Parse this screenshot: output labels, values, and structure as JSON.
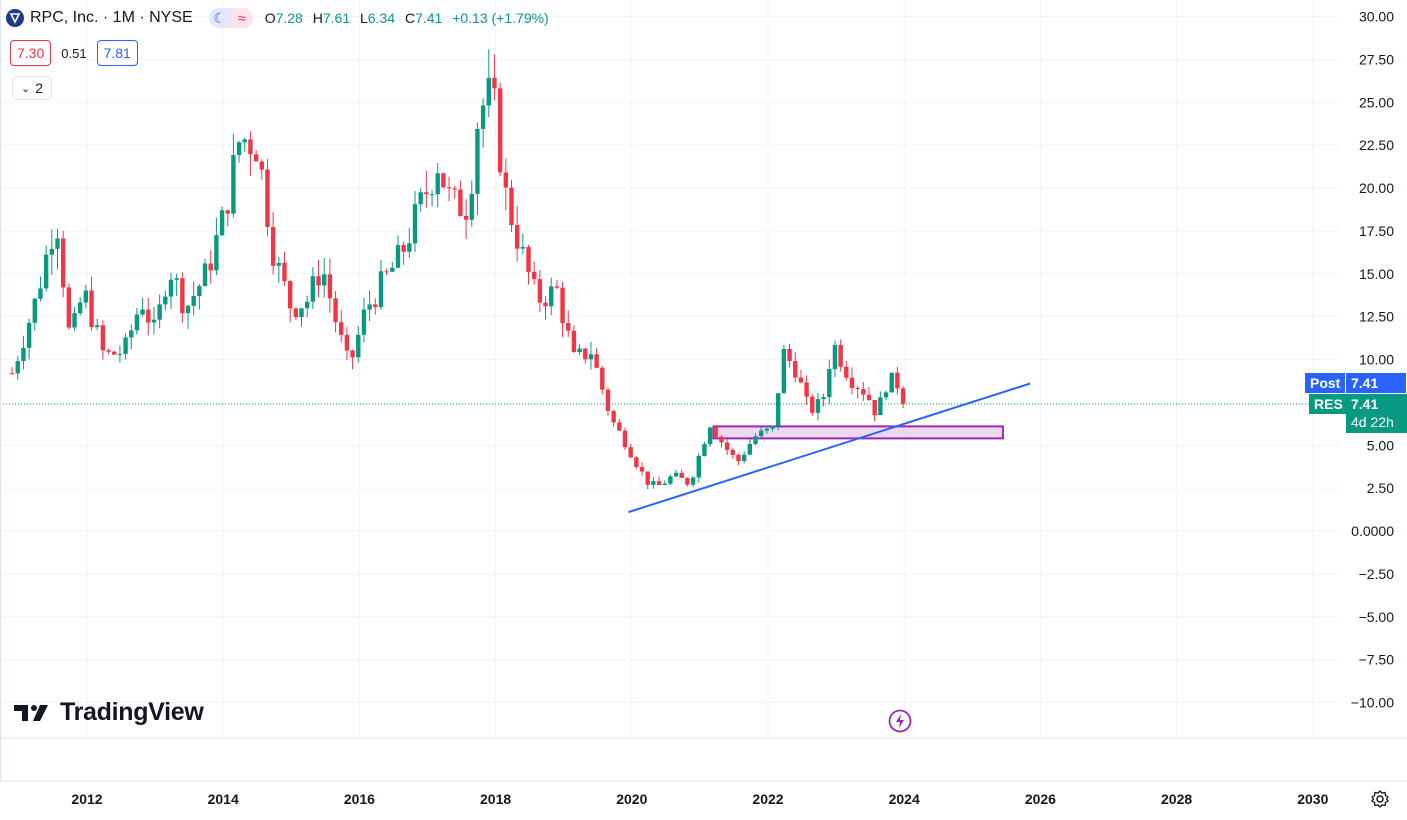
{
  "header": {
    "symbol": "RPC, Inc. · 1M · NYSE",
    "o_label": "O",
    "o_value": "7.28",
    "h_label": "H",
    "h_value": "7.61",
    "l_label": "L",
    "l_value": "6.34",
    "c_label": "C",
    "c_value": "7.41",
    "change": "+0.13 (+1.79%)",
    "bid": "7.30",
    "spread": "0.51",
    "ask": "7.81",
    "indicators_count": "2"
  },
  "badges": {
    "post_label": "Post",
    "post_value": "7.41",
    "res_label": "RES",
    "res_value": "7.41",
    "countdown": "4d 22h"
  },
  "brand": "TradingView",
  "colors": {
    "up": "#089981",
    "down": "#f23645",
    "trendline": "#2962ff",
    "zone_border": "#9c27b0",
    "zone_fill": "#e1bee7"
  },
  "chart_data": {
    "type": "candlestick",
    "title": "RPC, Inc. · 1M · NYSE",
    "interval": "1M",
    "ylim": [
      -11,
      30
    ],
    "y_ticks": [
      "30.00",
      "27.50",
      "25.00",
      "22.50",
      "20.00",
      "17.50",
      "15.00",
      "12.50",
      "10.00",
      "5.00",
      "2.50",
      "0.0000",
      "−2.50",
      "−5.00",
      "−7.50",
      "−10.00"
    ],
    "y_tick_values": [
      30,
      27.5,
      25,
      22.5,
      20,
      17.5,
      15,
      12.5,
      10,
      5,
      2.5,
      0,
      -2.5,
      -5,
      -7.5,
      -10
    ],
    "x_ticks": [
      "2012",
      "2014",
      "2016",
      "2018",
      "2020",
      "2022",
      "2024",
      "2026",
      "2028",
      "2030"
    ],
    "x_tick_years": [
      2012,
      2014,
      2016,
      2018,
      2020,
      2022,
      2024,
      2026,
      2028,
      2030
    ],
    "x_range_years": [
      2010.8,
      2031.2
    ],
    "last_price": 7.41,
    "anchors": [
      {
        "t": 2010.9,
        "p": 9.2
      },
      {
        "t": 2011.25,
        "p": 13.5
      },
      {
        "t": 2011.55,
        "p": 18.5
      },
      {
        "t": 2011.75,
        "p": 11.0
      },
      {
        "t": 2011.95,
        "p": 14.0
      },
      {
        "t": 2012.25,
        "p": 10.2
      },
      {
        "t": 2012.55,
        "p": 10.5
      },
      {
        "t": 2012.8,
        "p": 13.5
      },
      {
        "t": 2013.0,
        "p": 11.5
      },
      {
        "t": 2013.2,
        "p": 15.5
      },
      {
        "t": 2013.45,
        "p": 13.0
      },
      {
        "t": 2013.75,
        "p": 15.0
      },
      {
        "t": 2014.0,
        "p": 18.2
      },
      {
        "t": 2014.25,
        "p": 23.0
      },
      {
        "t": 2014.5,
        "p": 22.5
      },
      {
        "t": 2014.75,
        "p": 16.0
      },
      {
        "t": 2015.0,
        "p": 13.0
      },
      {
        "t": 2015.25,
        "p": 13.5
      },
      {
        "t": 2015.45,
        "p": 15.5
      },
      {
        "t": 2015.7,
        "p": 11.5
      },
      {
        "t": 2015.85,
        "p": 9.5
      },
      {
        "t": 2016.1,
        "p": 13.0
      },
      {
        "t": 2016.35,
        "p": 14.5
      },
      {
        "t": 2016.6,
        "p": 16.0
      },
      {
        "t": 2016.85,
        "p": 18.5
      },
      {
        "t": 2017.15,
        "p": 21.5
      },
      {
        "t": 2017.35,
        "p": 19.0
      },
      {
        "t": 2017.6,
        "p": 19.0
      },
      {
        "t": 2017.75,
        "p": 24.5
      },
      {
        "t": 2017.95,
        "p": 25.5
      },
      {
        "t": 2018.15,
        "p": 19.5
      },
      {
        "t": 2018.4,
        "p": 16.0
      },
      {
        "t": 2018.6,
        "p": 13.5
      },
      {
        "t": 2018.9,
        "p": 14.0
      },
      {
        "t": 2019.15,
        "p": 10.0
      },
      {
        "t": 2019.4,
        "p": 10.5
      },
      {
        "t": 2019.7,
        "p": 6.5
      },
      {
        "t": 2019.9,
        "p": 5.2
      },
      {
        "t": 2020.2,
        "p": 3.0
      },
      {
        "t": 2020.35,
        "p": 2.5
      },
      {
        "t": 2020.6,
        "p": 3.2
      },
      {
        "t": 2020.85,
        "p": 2.8
      },
      {
        "t": 2021.15,
        "p": 6.3
      },
      {
        "t": 2021.35,
        "p": 5.0
      },
      {
        "t": 2021.55,
        "p": 4.0
      },
      {
        "t": 2021.8,
        "p": 5.5
      },
      {
        "t": 2022.1,
        "p": 6.0
      },
      {
        "t": 2022.2,
        "p": 10.5
      },
      {
        "t": 2022.4,
        "p": 9.5
      },
      {
        "t": 2022.6,
        "p": 7.0
      },
      {
        "t": 2022.8,
        "p": 7.5
      },
      {
        "t": 2022.95,
        "p": 11.0
      },
      {
        "t": 2023.2,
        "p": 9.0
      },
      {
        "t": 2023.45,
        "p": 8.0
      },
      {
        "t": 2023.6,
        "p": 6.8
      },
      {
        "t": 2023.75,
        "p": 8.8
      },
      {
        "t": 2023.9,
        "p": 8.6
      },
      {
        "t": 2024.0,
        "p": 7.0
      },
      {
        "t": 2024.04,
        "p": 7.41
      }
    ],
    "annotations": {
      "trendline": {
        "from": {
          "t": 2019.95,
          "p": 1.1
        },
        "to": {
          "t": 2025.85,
          "p": 8.6
        }
      },
      "zone": {
        "from_t": 2021.2,
        "to_t": 2025.45,
        "top": 6.1,
        "bottom": 5.4
      },
      "last_price_line": 7.41
    }
  }
}
